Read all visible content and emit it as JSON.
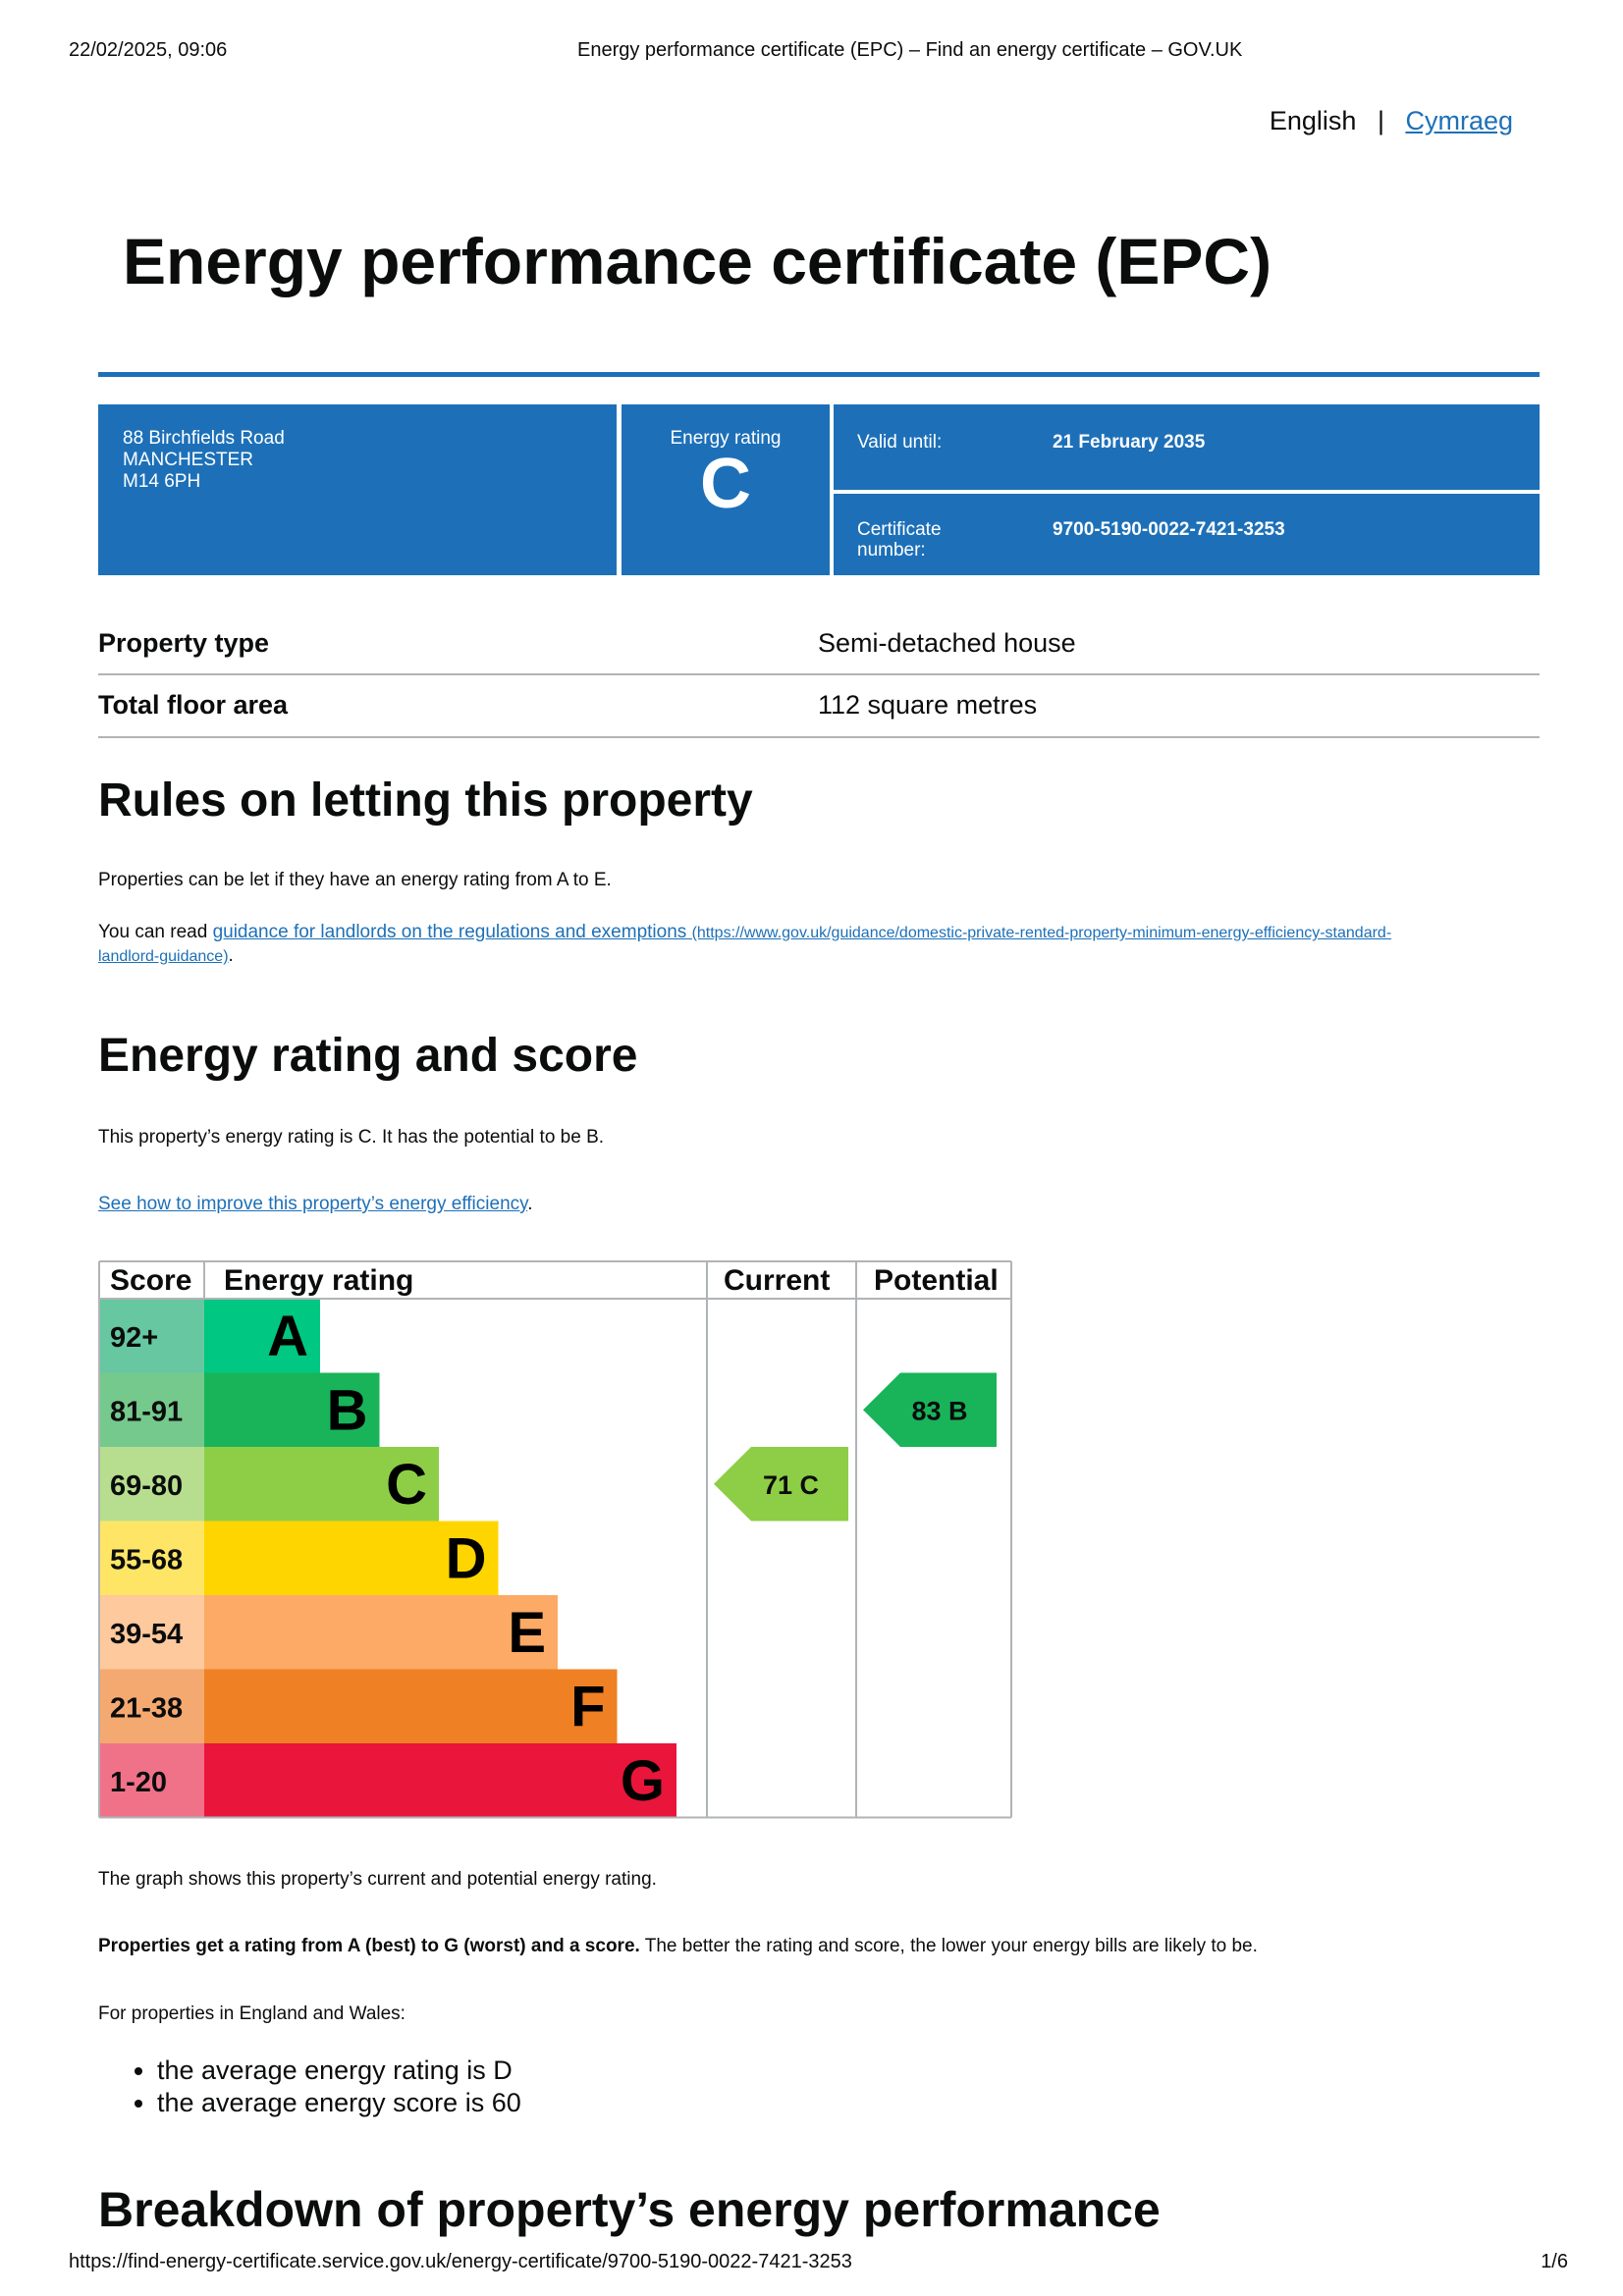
{
  "browser": {
    "datetime": "22/02/2025, 09:06",
    "page_title": "Energy performance certificate (EPC) – Find an energy certificate – GOV.UK",
    "url": "https://find-energy-certificate.service.gov.uk/energy-certificate/9700-5190-0022-7421-3253",
    "page": "1/6"
  },
  "language": {
    "current": "English",
    "separator": "|",
    "other": "Cymraeg"
  },
  "title": "Energy performance certificate (EPC)",
  "summary": {
    "address": [
      "88 Birchfields Road",
      "MANCHESTER",
      "M14 6PH"
    ],
    "rating_label": "Energy rating",
    "rating": "C",
    "valid_label": "Valid until:",
    "valid_value": "21 February 2035",
    "cert_label_1": "Certificate",
    "cert_label_2": "number:",
    "cert_value": "9700-5190-0022-7421-3253"
  },
  "property": [
    {
      "label": "Property type",
      "value": "Semi-detached house"
    },
    {
      "label": "Total floor area",
      "value": "112 square metres"
    }
  ],
  "rules": {
    "heading": "Rules on letting this property",
    "p1": "Properties can be let if they have an energy rating from A to E.",
    "p2_prefix": "You can read ",
    "p2_link": "guidance for landlords on the regulations and exemptions",
    "p2_url1": "(https://www.gov.uk/guidance/domestic-private-rented-property-minimum-energy-efficiency-standard-",
    "p2_url2": "landlord-guidance)",
    "p2_suffix": "."
  },
  "score": {
    "heading": "Energy rating and score",
    "p1": "This property’s energy rating is C. It has the potential to be B.",
    "link": "See how to improve this property’s energy efficiency",
    "link_suffix": ".",
    "graph_note": "The graph shows this property’s current and potential energy rating.",
    "bold": "Properties get a rating from A (best) to G (worst) and a score.",
    "rest": " The better the rating and score, the lower your energy bills are likely to be.",
    "avg_intro": "For properties in England and Wales:",
    "bullets": [
      "the average energy rating is D",
      "the average energy score is 60"
    ]
  },
  "chart_data": {
    "type": "table",
    "headers": [
      "Score",
      "Energy rating",
      "Current",
      "Potential"
    ],
    "bands": [
      {
        "score": "92+",
        "letter": "A",
        "color": "#00c781",
        "light": "#66c7a1"
      },
      {
        "score": "81-91",
        "letter": "B",
        "color": "#19b459",
        "light": "#75c98c"
      },
      {
        "score": "69-80",
        "letter": "C",
        "color": "#8dce46",
        "light": "#b7de8e"
      },
      {
        "score": "55-68",
        "letter": "D",
        "color": "#ffd500",
        "light": "#ffe566"
      },
      {
        "score": "39-54",
        "letter": "E",
        "color": "#fcaa65",
        "light": "#fdc99d"
      },
      {
        "score": "21-38",
        "letter": "F",
        "color": "#ef8023",
        "light": "#f4a970"
      },
      {
        "score": "1-20",
        "letter": "G",
        "color": "#e9153b",
        "light": "#f07289"
      }
    ],
    "current": {
      "score": 71,
      "letter": "C"
    },
    "potential": {
      "score": 83,
      "letter": "B"
    }
  },
  "breakdown_heading": "Breakdown of property’s energy performance"
}
